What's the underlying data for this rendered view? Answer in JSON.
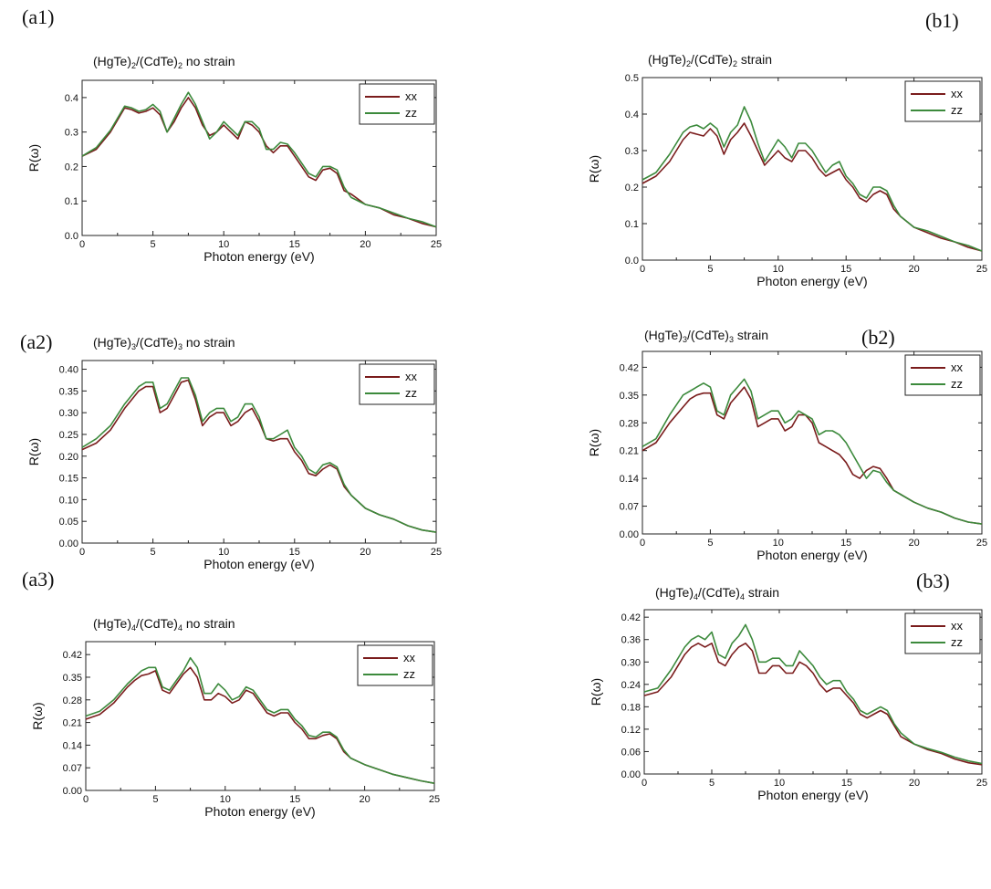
{
  "figure": {
    "colors": {
      "xx": "#7a1c1c",
      "zz": "#3c8a3c"
    }
  },
  "chart_data": [
    {
      "id": "a1",
      "type": "line",
      "panel_label": "(a1)",
      "title": {
        "pre": "(HgTe)",
        "s1": "2",
        "mid": "/(CdTe)",
        "s2": "2",
        "post": " no strain"
      },
      "xlabel": "Photon energy (eV)",
      "ylabel": "R(ω)",
      "xlim": [
        0,
        25
      ],
      "ylim": [
        0,
        0.45
      ],
      "xticks": [
        0,
        5,
        10,
        15,
        20,
        25
      ],
      "xtick_labels": [
        "0",
        "5",
        "10",
        "15",
        "20",
        "25"
      ],
      "yticks": [
        0,
        0.1,
        0.2,
        0.3,
        0.4
      ],
      "ytick_labels": [
        "0.0",
        "0.1",
        "0.2",
        "0.3",
        "0.4"
      ],
      "legend": [
        "xx",
        "zz"
      ],
      "x": [
        0,
        1,
        2,
        3,
        3.5,
        4,
        4.5,
        5,
        5.5,
        6,
        6.5,
        7,
        7.5,
        8,
        8.5,
        9,
        9.5,
        10,
        10.5,
        11,
        11.5,
        12,
        12.5,
        13,
        13.5,
        14,
        14.5,
        15,
        15.5,
        16,
        16.5,
        17,
        17.5,
        18,
        18.5,
        19,
        20,
        21,
        22,
        23,
        24,
        25
      ],
      "series": [
        {
          "name": "xx",
          "values": [
            0.23,
            0.25,
            0.3,
            0.37,
            0.365,
            0.355,
            0.36,
            0.37,
            0.35,
            0.3,
            0.33,
            0.37,
            0.4,
            0.37,
            0.32,
            0.29,
            0.3,
            0.32,
            0.3,
            0.28,
            0.33,
            0.32,
            0.3,
            0.26,
            0.24,
            0.26,
            0.26,
            0.23,
            0.2,
            0.17,
            0.16,
            0.19,
            0.195,
            0.18,
            0.13,
            0.12,
            0.09,
            0.08,
            0.06,
            0.05,
            0.035,
            0.025
          ]
        },
        {
          "name": "zz",
          "values": [
            0.23,
            0.255,
            0.305,
            0.375,
            0.37,
            0.36,
            0.365,
            0.38,
            0.36,
            0.3,
            0.34,
            0.38,
            0.415,
            0.38,
            0.33,
            0.28,
            0.3,
            0.33,
            0.31,
            0.29,
            0.33,
            0.33,
            0.31,
            0.25,
            0.25,
            0.27,
            0.265,
            0.24,
            0.21,
            0.18,
            0.17,
            0.2,
            0.2,
            0.19,
            0.14,
            0.11,
            0.09,
            0.08,
            0.065,
            0.05,
            0.04,
            0.025
          ]
        }
      ]
    },
    {
      "id": "b1",
      "type": "line",
      "panel_label": "(b1)",
      "title": {
        "pre": "(HgTe)",
        "s1": "2",
        "mid": "/(CdTe)",
        "s2": "2",
        "post": " strain"
      },
      "xlabel": "Photon energy (eV)",
      "ylabel": "R(ω)",
      "xlim": [
        0,
        25
      ],
      "ylim": [
        0,
        0.5
      ],
      "xticks": [
        0,
        5,
        10,
        15,
        20,
        25
      ],
      "xtick_labels": [
        "0",
        "5",
        "10",
        "15",
        "20",
        "25"
      ],
      "yticks": [
        0,
        0.1,
        0.2,
        0.3,
        0.4,
        0.5
      ],
      "ytick_labels": [
        "0.0",
        "0.1",
        "0.2",
        "0.3",
        "0.4",
        "0.5"
      ],
      "legend": [
        "xx",
        "zz"
      ],
      "x": [
        0,
        1,
        2,
        3,
        3.5,
        4,
        4.5,
        5,
        5.5,
        6,
        6.5,
        7,
        7.5,
        8,
        8.5,
        9,
        9.5,
        10,
        10.5,
        11,
        11.5,
        12,
        12.5,
        13,
        13.5,
        14,
        14.5,
        15,
        15.5,
        16,
        16.5,
        17,
        17.5,
        18,
        18.5,
        19,
        20,
        21,
        22,
        23,
        24,
        25
      ],
      "series": [
        {
          "name": "xx",
          "values": [
            0.21,
            0.23,
            0.27,
            0.33,
            0.35,
            0.345,
            0.34,
            0.36,
            0.34,
            0.29,
            0.33,
            0.35,
            0.375,
            0.34,
            0.3,
            0.26,
            0.28,
            0.3,
            0.28,
            0.27,
            0.3,
            0.3,
            0.28,
            0.25,
            0.23,
            0.24,
            0.25,
            0.22,
            0.2,
            0.17,
            0.16,
            0.18,
            0.19,
            0.18,
            0.14,
            0.12,
            0.09,
            0.075,
            0.06,
            0.05,
            0.035,
            0.025
          ]
        },
        {
          "name": "zz",
          "values": [
            0.22,
            0.24,
            0.29,
            0.35,
            0.365,
            0.37,
            0.36,
            0.375,
            0.36,
            0.31,
            0.35,
            0.37,
            0.42,
            0.38,
            0.32,
            0.27,
            0.3,
            0.33,
            0.31,
            0.28,
            0.32,
            0.32,
            0.3,
            0.27,
            0.24,
            0.26,
            0.27,
            0.23,
            0.21,
            0.18,
            0.17,
            0.2,
            0.2,
            0.19,
            0.15,
            0.12,
            0.09,
            0.08,
            0.065,
            0.05,
            0.04,
            0.025
          ]
        }
      ]
    },
    {
      "id": "a2",
      "type": "line",
      "panel_label": "(a2)",
      "title": {
        "pre": "(HgTe)",
        "s1": "3",
        "mid": "/(CdTe)",
        "s2": "3",
        "post": " no strain"
      },
      "xlabel": "Photon energy (eV)",
      "ylabel": "R(ω)",
      "xlim": [
        0,
        25
      ],
      "ylim": [
        0,
        0.42
      ],
      "xticks": [
        0,
        5,
        10,
        15,
        20,
        25
      ],
      "xtick_labels": [
        "0",
        "5",
        "10",
        "15",
        "20",
        "25"
      ],
      "yticks": [
        0,
        0.05,
        0.1,
        0.15,
        0.2,
        0.25,
        0.3,
        0.35,
        0.4
      ],
      "ytick_labels": [
        "0.00",
        "0.05",
        "0.10",
        "0.15",
        "0.20",
        "0.25",
        "0.30",
        "0.35",
        "0.40"
      ],
      "legend": [
        "xx",
        "zz"
      ],
      "x": [
        0,
        1,
        2,
        3,
        3.5,
        4,
        4.5,
        5,
        5.5,
        6,
        6.5,
        7,
        7.5,
        8,
        8.5,
        9,
        9.5,
        10,
        10.5,
        11,
        11.5,
        12,
        12.5,
        13,
        13.5,
        14,
        14.5,
        15,
        15.5,
        16,
        16.5,
        17,
        17.5,
        18,
        18.5,
        19,
        20,
        21,
        22,
        23,
        24,
        25
      ],
      "series": [
        {
          "name": "xx",
          "values": [
            0.215,
            0.23,
            0.26,
            0.31,
            0.33,
            0.35,
            0.36,
            0.36,
            0.3,
            0.31,
            0.34,
            0.37,
            0.375,
            0.33,
            0.27,
            0.29,
            0.3,
            0.3,
            0.27,
            0.28,
            0.3,
            0.31,
            0.28,
            0.24,
            0.235,
            0.24,
            0.24,
            0.21,
            0.19,
            0.16,
            0.155,
            0.17,
            0.18,
            0.17,
            0.13,
            0.11,
            0.08,
            0.065,
            0.055,
            0.04,
            0.03,
            0.025
          ]
        },
        {
          "name": "zz",
          "values": [
            0.22,
            0.24,
            0.27,
            0.32,
            0.34,
            0.36,
            0.37,
            0.37,
            0.31,
            0.32,
            0.35,
            0.38,
            0.38,
            0.34,
            0.28,
            0.3,
            0.31,
            0.31,
            0.28,
            0.29,
            0.32,
            0.32,
            0.29,
            0.24,
            0.24,
            0.25,
            0.26,
            0.22,
            0.2,
            0.17,
            0.16,
            0.18,
            0.185,
            0.175,
            0.135,
            0.11,
            0.08,
            0.065,
            0.055,
            0.04,
            0.03,
            0.025
          ]
        }
      ]
    },
    {
      "id": "b2",
      "type": "line",
      "panel_label": "(b2)",
      "title": {
        "pre": "(HgTe)",
        "s1": "3",
        "mid": "/(CdTe)",
        "s2": "3",
        "post": " strain"
      },
      "xlabel": "Photon energy (eV)",
      "ylabel": "R(ω)",
      "xlim": [
        0,
        25
      ],
      "ylim": [
        0,
        0.46
      ],
      "xticks": [
        0,
        5,
        10,
        15,
        20,
        25
      ],
      "xtick_labels": [
        "0",
        "5",
        "10",
        "15",
        "20",
        "25"
      ],
      "yticks": [
        0,
        0.07,
        0.14,
        0.21,
        0.28,
        0.35,
        0.42
      ],
      "ytick_labels": [
        "0.00",
        "0.07",
        "0.14",
        "0.21",
        "0.28",
        "0.35",
        "0.42"
      ],
      "legend": [
        "xx",
        "zz"
      ],
      "x": [
        0,
        1,
        2,
        3,
        3.5,
        4,
        4.5,
        5,
        5.5,
        6,
        6.5,
        7,
        7.5,
        8,
        8.5,
        9,
        9.5,
        10,
        10.5,
        11,
        11.5,
        12,
        12.5,
        13,
        13.5,
        14,
        14.5,
        15,
        15.5,
        16,
        16.5,
        17,
        17.5,
        18,
        18.5,
        19,
        20,
        21,
        22,
        23,
        24,
        25
      ],
      "series": [
        {
          "name": "xx",
          "values": [
            0.21,
            0.23,
            0.28,
            0.32,
            0.34,
            0.35,
            0.355,
            0.355,
            0.3,
            0.29,
            0.33,
            0.35,
            0.37,
            0.34,
            0.27,
            0.28,
            0.29,
            0.29,
            0.26,
            0.27,
            0.3,
            0.3,
            0.28,
            0.23,
            0.22,
            0.21,
            0.2,
            0.18,
            0.15,
            0.14,
            0.16,
            0.17,
            0.165,
            0.14,
            0.11,
            0.1,
            0.08,
            0.065,
            0.055,
            0.04,
            0.03,
            0.025
          ]
        },
        {
          "name": "zz",
          "values": [
            0.22,
            0.24,
            0.3,
            0.35,
            0.36,
            0.37,
            0.38,
            0.37,
            0.31,
            0.3,
            0.35,
            0.37,
            0.39,
            0.36,
            0.29,
            0.3,
            0.31,
            0.31,
            0.28,
            0.29,
            0.31,
            0.3,
            0.29,
            0.25,
            0.26,
            0.26,
            0.25,
            0.23,
            0.2,
            0.17,
            0.14,
            0.16,
            0.155,
            0.13,
            0.11,
            0.1,
            0.08,
            0.065,
            0.055,
            0.04,
            0.03,
            0.025
          ]
        }
      ]
    },
    {
      "id": "a3",
      "type": "line",
      "panel_label": "(a3)",
      "title": {
        "pre": "(HgTe)",
        "s1": "4",
        "mid": "/(CdTe)",
        "s2": "4",
        "post": " no strain"
      },
      "xlabel": "Photon energy (eV)",
      "ylabel": "R(ω)",
      "xlim": [
        0,
        25
      ],
      "ylim": [
        0,
        0.46
      ],
      "xticks": [
        0,
        5,
        10,
        15,
        20,
        25
      ],
      "xtick_labels": [
        "0",
        "5",
        "10",
        "15",
        "20",
        "25"
      ],
      "yticks": [
        0,
        0.07,
        0.14,
        0.21,
        0.28,
        0.35,
        0.42
      ],
      "ytick_labels": [
        "0.00",
        "0.07",
        "0.14",
        "0.21",
        "0.28",
        "0.35",
        "0.42"
      ],
      "legend": [
        "xx",
        "zz"
      ],
      "x": [
        0,
        1,
        2,
        3,
        3.5,
        4,
        4.5,
        5,
        5.5,
        6,
        6.5,
        7,
        7.5,
        8,
        8.5,
        9,
        9.5,
        10,
        10.5,
        11,
        11.5,
        12,
        12.5,
        13,
        13.5,
        14,
        14.5,
        15,
        15.5,
        16,
        16.5,
        17,
        17.5,
        18,
        18.5,
        19,
        20,
        21,
        22,
        23,
        24,
        25
      ],
      "series": [
        {
          "name": "xx",
          "values": [
            0.22,
            0.235,
            0.27,
            0.32,
            0.34,
            0.355,
            0.36,
            0.37,
            0.31,
            0.3,
            0.33,
            0.36,
            0.38,
            0.35,
            0.28,
            0.28,
            0.3,
            0.29,
            0.27,
            0.28,
            0.31,
            0.3,
            0.27,
            0.24,
            0.23,
            0.24,
            0.24,
            0.21,
            0.19,
            0.16,
            0.16,
            0.17,
            0.175,
            0.16,
            0.12,
            0.1,
            0.08,
            0.065,
            0.05,
            0.04,
            0.03,
            0.022
          ]
        },
        {
          "name": "zz",
          "values": [
            0.23,
            0.245,
            0.28,
            0.33,
            0.35,
            0.37,
            0.38,
            0.38,
            0.32,
            0.31,
            0.34,
            0.37,
            0.41,
            0.38,
            0.3,
            0.3,
            0.33,
            0.31,
            0.28,
            0.29,
            0.32,
            0.31,
            0.28,
            0.25,
            0.24,
            0.25,
            0.25,
            0.22,
            0.2,
            0.17,
            0.165,
            0.18,
            0.18,
            0.165,
            0.125,
            0.1,
            0.08,
            0.065,
            0.05,
            0.04,
            0.03,
            0.022
          ]
        }
      ]
    },
    {
      "id": "b3",
      "type": "line",
      "panel_label": "(b3)",
      "title": {
        "pre": "(HgTe)",
        "s1": "4",
        "mid": "/(CdTe)",
        "s2": "4",
        "post": " strain"
      },
      "xlabel": "Photon energy (eV)",
      "ylabel": "R(ω)",
      "xlim": [
        0,
        25
      ],
      "ylim": [
        0,
        0.44
      ],
      "xticks": [
        0,
        5,
        10,
        15,
        20,
        25
      ],
      "xtick_labels": [
        "0",
        "5",
        "10",
        "15",
        "20",
        "25"
      ],
      "yticks": [
        0,
        0.06,
        0.12,
        0.18,
        0.24,
        0.3,
        0.36,
        0.42
      ],
      "ytick_labels": [
        "0.00",
        "0.06",
        "0.12",
        "0.18",
        "0.24",
        "0.30",
        "0.36",
        "0.42"
      ],
      "legend": [
        "xx",
        "zz"
      ],
      "x": [
        0,
        1,
        2,
        3,
        3.5,
        4,
        4.5,
        5,
        5.5,
        6,
        6.5,
        7,
        7.5,
        8,
        8.5,
        9,
        9.5,
        10,
        10.5,
        11,
        11.5,
        12,
        12.5,
        13,
        13.5,
        14,
        14.5,
        15,
        15.5,
        16,
        16.5,
        17,
        17.5,
        18,
        18.5,
        19,
        20,
        21,
        22,
        23,
        24,
        25
      ],
      "series": [
        {
          "name": "xx",
          "values": [
            0.21,
            0.22,
            0.26,
            0.32,
            0.34,
            0.35,
            0.34,
            0.35,
            0.3,
            0.29,
            0.32,
            0.34,
            0.35,
            0.33,
            0.27,
            0.27,
            0.29,
            0.29,
            0.27,
            0.27,
            0.3,
            0.29,
            0.27,
            0.24,
            0.22,
            0.23,
            0.23,
            0.21,
            0.19,
            0.16,
            0.15,
            0.16,
            0.17,
            0.16,
            0.13,
            0.1,
            0.08,
            0.065,
            0.055,
            0.04,
            0.03,
            0.025
          ]
        },
        {
          "name": "zz",
          "values": [
            0.22,
            0.23,
            0.28,
            0.34,
            0.36,
            0.37,
            0.36,
            0.38,
            0.32,
            0.31,
            0.35,
            0.37,
            0.4,
            0.36,
            0.3,
            0.3,
            0.31,
            0.31,
            0.29,
            0.29,
            0.33,
            0.31,
            0.29,
            0.26,
            0.24,
            0.25,
            0.25,
            0.22,
            0.2,
            0.17,
            0.16,
            0.17,
            0.18,
            0.17,
            0.135,
            0.11,
            0.08,
            0.068,
            0.058,
            0.045,
            0.035,
            0.028
          ]
        }
      ]
    }
  ]
}
